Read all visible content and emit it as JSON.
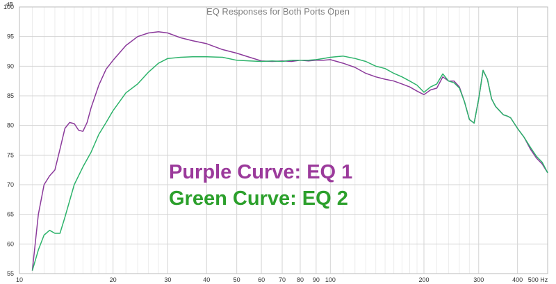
{
  "chart_data": {
    "type": "line",
    "title": "EQ Responses for Both Ports Open",
    "xscale": "log",
    "xlim": [
      10,
      500
    ],
    "ylim": [
      55,
      100
    ],
    "x_unit": "Hz",
    "y_unit": "dB",
    "grid": true,
    "x_ticks": [
      10,
      20,
      30,
      40,
      50,
      60,
      70,
      80,
      90,
      100,
      200,
      300,
      400,
      500
    ],
    "x_tick_labels": [
      "10",
      "20",
      "30",
      "40",
      "50",
      "60",
      "70",
      "80",
      "90",
      "100",
      "200",
      "300",
      "400",
      "500 Hz"
    ],
    "y_ticks": [
      55,
      60,
      65,
      70,
      75,
      80,
      85,
      90,
      95,
      100
    ],
    "y_tick_labels": [
      "55",
      "60",
      "65",
      "70",
      "75",
      "80",
      "85",
      "90",
      "95",
      "100"
    ],
    "annotations": [
      {
        "text": "Purple Curve: EQ 1",
        "color": "#9b3a9b"
      },
      {
        "text": "Green Curve: EQ 2",
        "color": "#2ca02c"
      }
    ],
    "series": [
      {
        "color": "#8b3a9b",
        "x": [
          11,
          11.5,
          12,
          12.5,
          13,
          13.5,
          14,
          14.5,
          15,
          15.5,
          16,
          16.5,
          17,
          18,
          19,
          20,
          22,
          24,
          26,
          28,
          30,
          33,
          36,
          40,
          45,
          50,
          55,
          60,
          65,
          70,
          75,
          80,
          85,
          90,
          95,
          100,
          110,
          120,
          130,
          140,
          150,
          160,
          170,
          180,
          190,
          200,
          210,
          220,
          230,
          240,
          250,
          260,
          270,
          280,
          290,
          300,
          310,
          320,
          330,
          340,
          350,
          360,
          370,
          380,
          400,
          420,
          440,
          460,
          480,
          500
        ],
        "y": [
          55.5,
          65,
          70,
          71.5,
          72.5,
          76,
          79.5,
          80.5,
          80.3,
          79.2,
          79,
          80.5,
          83,
          86.8,
          89.5,
          91,
          93.5,
          95,
          95.6,
          95.8,
          95.6,
          94.8,
          94.3,
          93.8,
          92.8,
          92.2,
          91.5,
          90.9,
          90.8,
          90.9,
          90.8,
          91.0,
          90.9,
          91.0,
          91.0,
          91.1,
          90.5,
          89.8,
          88.8,
          88.2,
          87.8,
          87.5,
          87.0,
          86.5,
          85.8,
          85.2,
          86.0,
          86.3,
          88.2,
          87.5,
          87.5,
          86.5,
          84.0,
          81.0,
          80.4,
          84.5,
          89.3,
          87.8,
          84.5,
          83.2,
          82.5,
          81.8,
          81.6,
          81.3,
          79.5,
          78,
          76,
          74.5,
          73.5,
          72
        ]
      },
      {
        "color": "#2db36b",
        "x": [
          11,
          11.5,
          12,
          12.5,
          13,
          13.5,
          14,
          15,
          16,
          17,
          18,
          19,
          20,
          22,
          24,
          26,
          28,
          30,
          33,
          36,
          40,
          45,
          50,
          55,
          60,
          65,
          70,
          75,
          80,
          85,
          90,
          95,
          100,
          110,
          120,
          130,
          140,
          150,
          160,
          170,
          180,
          190,
          200,
          210,
          220,
          230,
          240,
          250,
          260,
          270,
          280,
          290,
          300,
          310,
          320,
          330,
          340,
          350,
          360,
          370,
          380,
          400,
          420,
          440,
          460,
          480,
          500
        ],
        "y": [
          55.5,
          59,
          61.5,
          62.3,
          61.8,
          61.8,
          64.5,
          70,
          73,
          75.5,
          78.5,
          80.5,
          82.5,
          85.5,
          87,
          89,
          90.5,
          91.3,
          91.5,
          91.6,
          91.6,
          91.5,
          91.0,
          90.9,
          90.8,
          90.9,
          90.8,
          91.0,
          91.0,
          91.0,
          91.1,
          91.3,
          91.5,
          91.7,
          91.3,
          90.8,
          90.0,
          89.6,
          88.8,
          88.2,
          87.5,
          86.8,
          85.6,
          86.5,
          87.0,
          88.7,
          87.5,
          87.2,
          86.3,
          84.0,
          81.0,
          80.4,
          84.5,
          89.3,
          87.8,
          84.5,
          83.2,
          82.5,
          81.8,
          81.6,
          81.3,
          79.5,
          78,
          76.3,
          74.8,
          73.8,
          72
        ]
      }
    ]
  }
}
